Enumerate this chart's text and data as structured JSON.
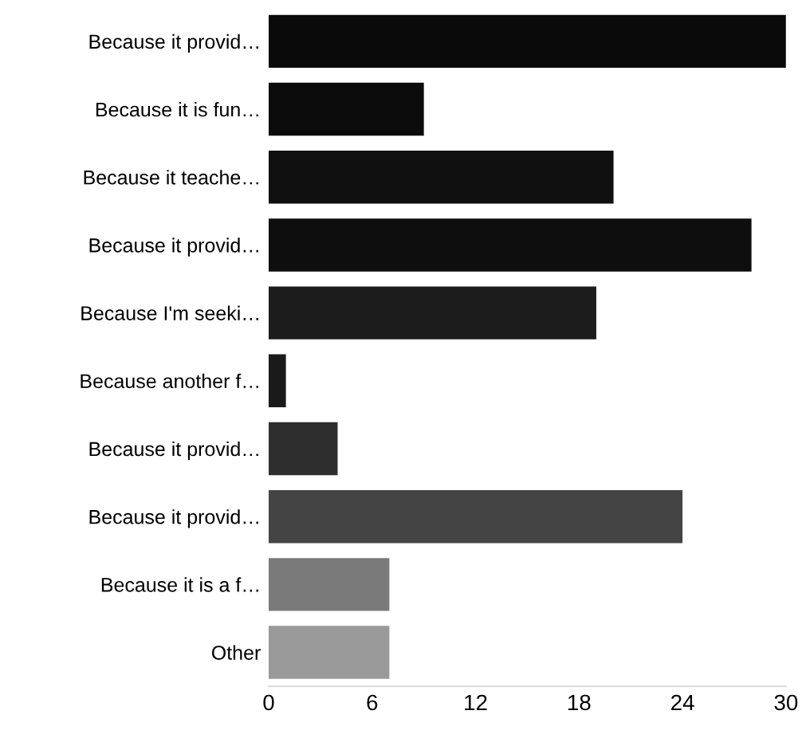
{
  "chart_data": {
    "type": "bar",
    "orientation": "horizontal",
    "categories": [
      "Because it provid…",
      "Because it is fun…",
      "Because it teache…",
      "Because it provid…",
      "Because I'm seeki…",
      "Because another f…",
      "Because it provid…",
      "Because it provid…",
      "Because it is a f…",
      "Other"
    ],
    "values": [
      30,
      9,
      20,
      28,
      19,
      1,
      4,
      24,
      7,
      7
    ],
    "colors": [
      "#0a0a0a",
      "#0c0c0c",
      "#101010",
      "#0e0e0e",
      "#1c1c1c",
      "#1a1a1a",
      "#2e2e2e",
      "#444444",
      "#7a7a7a",
      "#9a9a9a"
    ],
    "xlim": [
      0,
      30
    ],
    "xticks": [
      0,
      6,
      12,
      18,
      24,
      30
    ],
    "grid": false
  }
}
